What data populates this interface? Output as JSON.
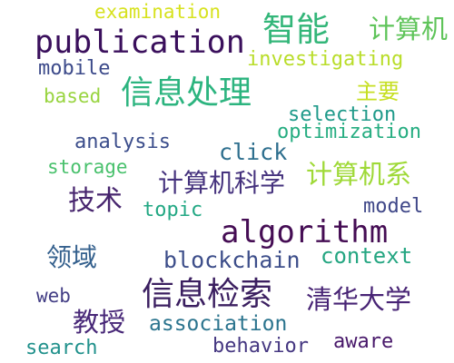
{
  "wordcloud": {
    "words": [
      {
        "text": "examination",
        "color": "#d7e21f"
      },
      {
        "text": "publication",
        "color": "#3a0f5c"
      },
      {
        "text": "智能",
        "color": "#33b679"
      },
      {
        "text": "计算机",
        "color": "#5fc45a"
      },
      {
        "text": "mobile",
        "color": "#3c4a8a"
      },
      {
        "text": "investigating",
        "color": "#b9dd2a"
      },
      {
        "text": "based",
        "color": "#98d43f"
      },
      {
        "text": "信息处理",
        "color": "#2cb47f"
      },
      {
        "text": "主要",
        "color": "#c6df22"
      },
      {
        "text": "selection",
        "color": "#1f9a8a"
      },
      {
        "text": "optimization",
        "color": "#26ad81"
      },
      {
        "text": "analysis",
        "color": "#3b4d8b"
      },
      {
        "text": "click",
        "color": "#2e6f8e"
      },
      {
        "text": "storage",
        "color": "#49c16d"
      },
      {
        "text": "计算机科学",
        "color": "#46337e"
      },
      {
        "text": "计算机系",
        "color": "#9fd938"
      },
      {
        "text": "技术",
        "color": "#47256e"
      },
      {
        "text": "topic",
        "color": "#23a884"
      },
      {
        "text": "model",
        "color": "#3f4788"
      },
      {
        "text": "algorithm",
        "color": "#450d54"
      },
      {
        "text": "领域",
        "color": "#34608d"
      },
      {
        "text": "blockchain",
        "color": "#3d4e8a"
      },
      {
        "text": "context",
        "color": "#25a682"
      },
      {
        "text": "web",
        "color": "#433e85"
      },
      {
        "text": "信息检索",
        "color": "#3b1f60"
      },
      {
        "text": "清华大学",
        "color": "#482475"
      },
      {
        "text": "教授",
        "color": "#482878"
      },
      {
        "text": "association",
        "color": "#2b748e"
      },
      {
        "text": "search",
        "color": "#21918c"
      },
      {
        "text": "behavior",
        "color": "#453781"
      },
      {
        "text": "aware",
        "color": "#48186a"
      }
    ]
  }
}
